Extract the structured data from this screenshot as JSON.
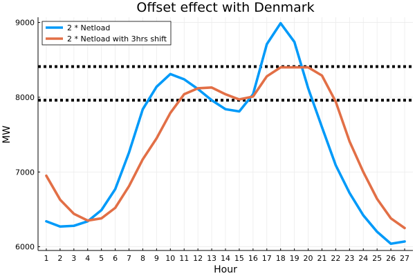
{
  "chart_data": {
    "type": "line",
    "title": "Offset effect with Denmark",
    "xlabel": "Hour",
    "ylabel": "MW",
    "x": [
      1,
      2,
      3,
      4,
      5,
      6,
      7,
      8,
      9,
      10,
      11,
      12,
      13,
      14,
      15,
      16,
      17,
      18,
      19,
      20,
      21,
      22,
      23,
      24,
      25,
      26,
      27
    ],
    "x_ticks": [
      "1",
      "2",
      "3",
      "4",
      "5",
      "6",
      "7",
      "8",
      "9",
      "10",
      "11",
      "12",
      "13",
      "14",
      "15",
      "16",
      "17",
      "18",
      "19",
      "20",
      "21",
      "22",
      "23",
      "24",
      "25",
      "26",
      "27"
    ],
    "y_ticks": [
      "6000",
      "7000",
      "8000",
      "9000"
    ],
    "xlim": [
      0.4,
      27.6
    ],
    "ylim": [
      5950,
      9070
    ],
    "grid": true,
    "legend_position": "top-left",
    "series": [
      {
        "name": "2 * Netload",
        "color": "#009af9",
        "values": [
          6340,
          6270,
          6280,
          6340,
          6490,
          6770,
          7260,
          7840,
          8140,
          8310,
          8240,
          8110,
          7960,
          7840,
          7810,
          8040,
          8710,
          8990,
          8740,
          8120,
          7600,
          7090,
          6720,
          6420,
          6200,
          6040,
          6070
        ]
      },
      {
        "name": "2 * Netload with 3hrs shift",
        "color": "#e26f46",
        "values": [
          6950,
          6630,
          6440,
          6350,
          6380,
          6520,
          6810,
          7170,
          7450,
          7790,
          8040,
          8120,
          8130,
          8040,
          7970,
          8010,
          8280,
          8400,
          8400,
          8400,
          8290,
          7940,
          7410,
          7000,
          6640,
          6380,
          6250
        ]
      }
    ],
    "reference_lines": [
      {
        "y": 8410,
        "style": "dotted",
        "color": "#000000"
      },
      {
        "y": 7960,
        "style": "dotted",
        "color": "#000000"
      }
    ]
  }
}
